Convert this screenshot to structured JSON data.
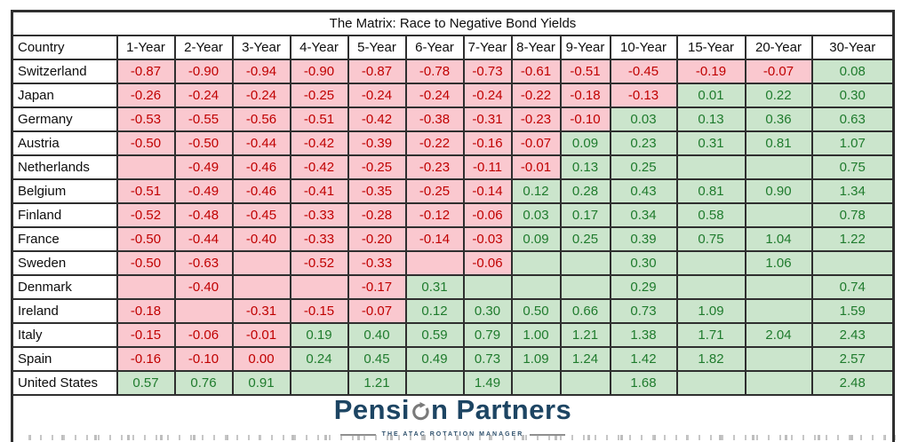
{
  "colors": {
    "negative_bg": "#FAC8CF",
    "negative_text": "#C00000",
    "positive_bg": "#CBE5CC",
    "positive_text": "#1F7B2D",
    "grid_border": "#2F2F2F",
    "logo_navy": "#1D4563",
    "logo_icon_gray": "#7A7A7A"
  },
  "logo": {
    "name_part1": "Pensi",
    "name_part2": "n Partners",
    "tagline": "THE ATAC ROTATION MANAGER"
  },
  "chart_data": {
    "type": "table",
    "title": "The Matrix:  Race to Negative Bond Yields",
    "legend_note": "p = pink cell (negative yield, red text), g = green cell (positive yield, green text); empty string = blank colored cell",
    "columns": [
      "Country",
      "1-Year",
      "2-Year",
      "3-Year",
      "4-Year",
      "5-Year",
      "6-Year",
      "7-Year",
      "8-Year",
      "9-Year",
      "10-Year",
      "15-Year",
      "20-Year",
      "30-Year"
    ],
    "rows": [
      {
        "country": "Switzerland",
        "cells": [
          [
            "-0.87",
            "p"
          ],
          [
            "-0.90",
            "p"
          ],
          [
            "-0.94",
            "p"
          ],
          [
            "-0.90",
            "p"
          ],
          [
            "-0.87",
            "p"
          ],
          [
            "-0.78",
            "p"
          ],
          [
            "-0.73",
            "p"
          ],
          [
            "-0.61",
            "p"
          ],
          [
            "-0.51",
            "p"
          ],
          [
            "-0.45",
            "p"
          ],
          [
            "-0.19",
            "p"
          ],
          [
            "-0.07",
            "p"
          ],
          [
            "0.08",
            "g"
          ]
        ]
      },
      {
        "country": "Japan",
        "cells": [
          [
            "-0.26",
            "p"
          ],
          [
            "-0.24",
            "p"
          ],
          [
            "-0.24",
            "p"
          ],
          [
            "-0.25",
            "p"
          ],
          [
            "-0.24",
            "p"
          ],
          [
            "-0.24",
            "p"
          ],
          [
            "-0.24",
            "p"
          ],
          [
            "-0.22",
            "p"
          ],
          [
            "-0.18",
            "p"
          ],
          [
            "-0.13",
            "p"
          ],
          [
            "0.01",
            "g"
          ],
          [
            "0.22",
            "g"
          ],
          [
            "0.30",
            "g"
          ]
        ]
      },
      {
        "country": "Germany",
        "cells": [
          [
            "-0.53",
            "p"
          ],
          [
            "-0.55",
            "p"
          ],
          [
            "-0.56",
            "p"
          ],
          [
            "-0.51",
            "p"
          ],
          [
            "-0.42",
            "p"
          ],
          [
            "-0.38",
            "p"
          ],
          [
            "-0.31",
            "p"
          ],
          [
            "-0.23",
            "p"
          ],
          [
            "-0.10",
            "p"
          ],
          [
            "0.03",
            "g"
          ],
          [
            "0.13",
            "g"
          ],
          [
            "0.36",
            "g"
          ],
          [
            "0.63",
            "g"
          ]
        ]
      },
      {
        "country": "Austria",
        "cells": [
          [
            "-0.50",
            "p"
          ],
          [
            "-0.50",
            "p"
          ],
          [
            "-0.44",
            "p"
          ],
          [
            "-0.42",
            "p"
          ],
          [
            "-0.39",
            "p"
          ],
          [
            "-0.22",
            "p"
          ],
          [
            "-0.16",
            "p"
          ],
          [
            "-0.07",
            "p"
          ],
          [
            "0.09",
            "g"
          ],
          [
            "0.23",
            "g"
          ],
          [
            "0.31",
            "g"
          ],
          [
            "0.81",
            "g"
          ],
          [
            "1.07",
            "g"
          ]
        ]
      },
      {
        "country": "Netherlands",
        "cells": [
          [
            "",
            "p"
          ],
          [
            "-0.49",
            "p"
          ],
          [
            "-0.46",
            "p"
          ],
          [
            "-0.42",
            "p"
          ],
          [
            "-0.25",
            "p"
          ],
          [
            "-0.23",
            "p"
          ],
          [
            "-0.11",
            "p"
          ],
          [
            "-0.01",
            "p"
          ],
          [
            "0.13",
            "g"
          ],
          [
            "0.25",
            "g"
          ],
          [
            "",
            "g"
          ],
          [
            "",
            "g"
          ],
          [
            "0.75",
            "g"
          ]
        ]
      },
      {
        "country": "Belgium",
        "cells": [
          [
            "-0.51",
            "p"
          ],
          [
            "-0.49",
            "p"
          ],
          [
            "-0.46",
            "p"
          ],
          [
            "-0.41",
            "p"
          ],
          [
            "-0.35",
            "p"
          ],
          [
            "-0.25",
            "p"
          ],
          [
            "-0.14",
            "p"
          ],
          [
            "0.12",
            "g"
          ],
          [
            "0.28",
            "g"
          ],
          [
            "0.43",
            "g"
          ],
          [
            "0.81",
            "g"
          ],
          [
            "0.90",
            "g"
          ],
          [
            "1.34",
            "g"
          ]
        ]
      },
      {
        "country": "Finland",
        "cells": [
          [
            "-0.52",
            "p"
          ],
          [
            "-0.48",
            "p"
          ],
          [
            "-0.45",
            "p"
          ],
          [
            "-0.33",
            "p"
          ],
          [
            "-0.28",
            "p"
          ],
          [
            "-0.12",
            "p"
          ],
          [
            "-0.06",
            "p"
          ],
          [
            "0.03",
            "g"
          ],
          [
            "0.17",
            "g"
          ],
          [
            "0.34",
            "g"
          ],
          [
            "0.58",
            "g"
          ],
          [
            "",
            "g"
          ],
          [
            "0.78",
            "g"
          ]
        ]
      },
      {
        "country": "France",
        "cells": [
          [
            "-0.50",
            "p"
          ],
          [
            "-0.44",
            "p"
          ],
          [
            "-0.40",
            "p"
          ],
          [
            "-0.33",
            "p"
          ],
          [
            "-0.20",
            "p"
          ],
          [
            "-0.14",
            "p"
          ],
          [
            "-0.03",
            "p"
          ],
          [
            "0.09",
            "g"
          ],
          [
            "0.25",
            "g"
          ],
          [
            "0.39",
            "g"
          ],
          [
            "0.75",
            "g"
          ],
          [
            "1.04",
            "g"
          ],
          [
            "1.22",
            "g"
          ]
        ]
      },
      {
        "country": "Sweden",
        "cells": [
          [
            "-0.50",
            "p"
          ],
          [
            "-0.63",
            "p"
          ],
          [
            "",
            "p"
          ],
          [
            "-0.52",
            "p"
          ],
          [
            "-0.33",
            "p"
          ],
          [
            "",
            "p"
          ],
          [
            "-0.06",
            "p"
          ],
          [
            "",
            "g"
          ],
          [
            "",
            "g"
          ],
          [
            "0.30",
            "g"
          ],
          [
            "",
            "g"
          ],
          [
            "1.06",
            "g"
          ],
          [
            "",
            "g"
          ]
        ]
      },
      {
        "country": "Denmark",
        "cells": [
          [
            "",
            "p"
          ],
          [
            "-0.40",
            "p"
          ],
          [
            "",
            "p"
          ],
          [
            "",
            "p"
          ],
          [
            "-0.17",
            "p"
          ],
          [
            "0.31",
            "g"
          ],
          [
            "",
            "g"
          ],
          [
            "",
            "g"
          ],
          [
            "",
            "g"
          ],
          [
            "0.29",
            "g"
          ],
          [
            "",
            "g"
          ],
          [
            "",
            "g"
          ],
          [
            "0.74",
            "g"
          ]
        ]
      },
      {
        "country": "Ireland",
        "cells": [
          [
            "-0.18",
            "p"
          ],
          [
            "",
            "p"
          ],
          [
            "-0.31",
            "p"
          ],
          [
            "-0.15",
            "p"
          ],
          [
            "-0.07",
            "p"
          ],
          [
            "0.12",
            "g"
          ],
          [
            "0.30",
            "g"
          ],
          [
            "0.50",
            "g"
          ],
          [
            "0.66",
            "g"
          ],
          [
            "0.73",
            "g"
          ],
          [
            "1.09",
            "g"
          ],
          [
            "",
            "g"
          ],
          [
            "1.59",
            "g"
          ]
        ]
      },
      {
        "country": "Italy",
        "cells": [
          [
            "-0.15",
            "p"
          ],
          [
            "-0.06",
            "p"
          ],
          [
            "-0.01",
            "p"
          ],
          [
            "0.19",
            "g"
          ],
          [
            "0.40",
            "g"
          ],
          [
            "0.59",
            "g"
          ],
          [
            "0.79",
            "g"
          ],
          [
            "1.00",
            "g"
          ],
          [
            "1.21",
            "g"
          ],
          [
            "1.38",
            "g"
          ],
          [
            "1.71",
            "g"
          ],
          [
            "2.04",
            "g"
          ],
          [
            "2.43",
            "g"
          ]
        ]
      },
      {
        "country": "Spain",
        "cells": [
          [
            "-0.16",
            "p"
          ],
          [
            "-0.10",
            "p"
          ],
          [
            "0.00",
            "p"
          ],
          [
            "0.24",
            "g"
          ],
          [
            "0.45",
            "g"
          ],
          [
            "0.49",
            "g"
          ],
          [
            "0.73",
            "g"
          ],
          [
            "1.09",
            "g"
          ],
          [
            "1.24",
            "g"
          ],
          [
            "1.42",
            "g"
          ],
          [
            "1.82",
            "g"
          ],
          [
            "",
            "g"
          ],
          [
            "2.57",
            "g"
          ]
        ]
      },
      {
        "country": "United States",
        "cells": [
          [
            "0.57",
            "g"
          ],
          [
            "0.76",
            "g"
          ],
          [
            "0.91",
            "g"
          ],
          [
            "",
            "g"
          ],
          [
            "1.21",
            "g"
          ],
          [
            "",
            "g"
          ],
          [
            "1.49",
            "g"
          ],
          [
            "",
            "g"
          ],
          [
            "",
            "g"
          ],
          [
            "1.68",
            "g"
          ],
          [
            "",
            "g"
          ],
          [
            "",
            "g"
          ],
          [
            "2.48",
            "g"
          ]
        ]
      }
    ]
  }
}
